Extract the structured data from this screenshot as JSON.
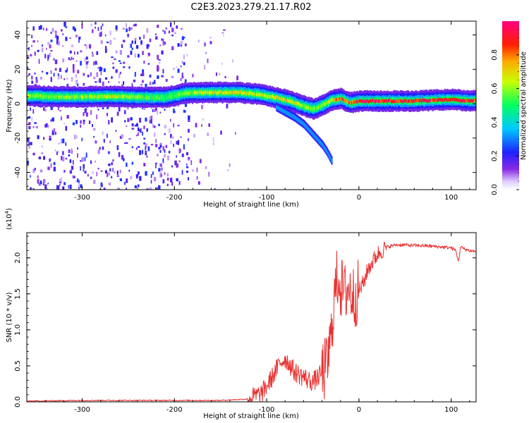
{
  "title": "C2E3.2023.279.21.17.R02",
  "colors": {
    "snr_line": "#e8302f",
    "background": "#ffffff",
    "axis": "#000000"
  },
  "chart_data": [
    {
      "type": "heatmap",
      "name": "spectrogram",
      "xlabel": "Height of straight line (km)",
      "ylabel": "Frequency (Hz)",
      "xlim": [
        -360,
        127
      ],
      "ylim": [
        -50,
        48
      ],
      "x_ticks": [
        -300,
        -200,
        -100,
        0,
        100
      ],
      "x_tick_labels": [
        "-300",
        "-200",
        "-100",
        "0",
        "100"
      ],
      "y_ticks": [
        -40,
        -20,
        0,
        20,
        40
      ],
      "y_tick_labels": [
        "-40",
        "-20",
        "0",
        "20",
        "40"
      ],
      "colorbar": {
        "label": "Normalized spectral amplitude",
        "range": [
          0.0,
          1.0
        ],
        "ticks": [
          0.0,
          0.2,
          0.4,
          0.6,
          0.8
        ],
        "tick_labels": [
          "0.0",
          "0.2",
          "0.4",
          "0.6",
          "0.8"
        ],
        "colormap": "rainbow (white→violet→blue→cyan→green→yellow→red→magenta)"
      },
      "main_tone": {
        "description": "dominant spectral line frequency (Hz) vs height (km)",
        "x": [
          -355,
          -330,
          -300,
          -270,
          -240,
          -210,
          -190,
          -170,
          -150,
          -130,
          -110,
          -90,
          -75,
          -60,
          -50,
          -40,
          -30,
          -25,
          -20,
          -15,
          -10,
          0,
          20,
          40,
          60,
          80,
          100,
          120,
          127
        ],
        "y": [
          4.5,
          4.0,
          4.0,
          4.2,
          3.8,
          3.6,
          6.0,
          6.5,
          6.5,
          6.5,
          5.5,
          3.5,
          1.5,
          -1.5,
          -3.0,
          -1.0,
          2.0,
          2.5,
          3.0,
          1.5,
          0.5,
          1.5,
          1.5,
          1.5,
          1.5,
          2.0,
          2.5,
          1.5,
          2.0
        ],
        "intensity": [
          0.65,
          0.6,
          0.62,
          0.68,
          0.6,
          0.55,
          0.6,
          0.68,
          0.72,
          0.72,
          0.65,
          0.7,
          0.72,
          0.65,
          0.6,
          0.62,
          0.7,
          0.85,
          0.88,
          0.85,
          0.8,
          0.95,
          0.95,
          0.95,
          0.95,
          0.92,
          0.95,
          0.92,
          0.9
        ]
      },
      "secondary_trace": {
        "description": "descending branch (Hz) vs height (km)",
        "x": [
          -90,
          -80,
          -70,
          -60,
          -50,
          -40,
          -35,
          -30
        ],
        "y": [
          -2,
          -5,
          -8,
          -12,
          -18,
          -24,
          -28,
          -33
        ]
      },
      "noise_region_x": [
        -360,
        -185
      ],
      "noise_region_density": "high below -185 km, sparse from -185 to -140 km, absent above -140 km"
    },
    {
      "type": "line",
      "name": "snr",
      "xlabel": "Height of straight line (km)",
      "ylabel": "SNR (10 * v/v)",
      "y_multiplier": "(x10",
      "y_multiplier_exp": "4",
      "y_multiplier_close": ")",
      "xlim": [
        -360,
        127
      ],
      "ylim": [
        0.0,
        2.35
      ],
      "x_ticks": [
        -300,
        -200,
        -100,
        0,
        100
      ],
      "x_tick_labels": [
        "-300",
        "-200",
        "-100",
        "0",
        "100"
      ],
      "y_ticks": [
        0.0,
        0.5,
        1.0,
        1.5,
        2.0
      ],
      "y_tick_labels": [
        "0.0",
        "0.5",
        "1.0",
        "1.5",
        "2.0"
      ],
      "series": [
        {
          "name": "SNR",
          "x": [
            -360,
            -300,
            -250,
            -200,
            -150,
            -120,
            -105,
            -95,
            -85,
            -80,
            -75,
            -70,
            -65,
            -60,
            -55,
            -50,
            -45,
            -40,
            -35,
            -30,
            -28,
            -25,
            -22,
            -20,
            -18,
            -15,
            -12,
            -10,
            -5,
            0,
            5,
            10,
            15,
            20,
            25,
            30,
            40,
            50,
            60,
            70,
            80,
            90,
            100,
            105,
            108,
            110,
            115,
            120,
            127
          ],
          "y": [
            0.01,
            0.02,
            0.02,
            0.02,
            0.02,
            0.04,
            0.12,
            0.32,
            0.55,
            0.6,
            0.52,
            0.42,
            0.38,
            0.35,
            0.3,
            0.28,
            0.33,
            0.4,
            0.48,
            0.9,
            1.3,
            1.6,
            1.8,
            1.6,
            1.55,
            1.5,
            1.6,
            1.55,
            1.45,
            1.55,
            1.65,
            1.85,
            1.95,
            2.05,
            2.1,
            2.15,
            2.18,
            2.18,
            2.17,
            2.17,
            2.16,
            2.15,
            2.14,
            2.1,
            1.95,
            2.15,
            2.12,
            2.1,
            2.09
          ]
        }
      ]
    }
  ]
}
